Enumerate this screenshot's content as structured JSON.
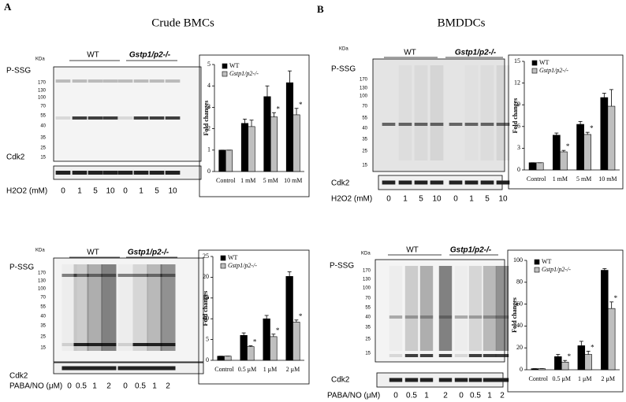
{
  "panels": [
    {
      "label": "A",
      "title": "Crude BMCs"
    },
    {
      "label": "B",
      "title": "BMDDCs"
    }
  ],
  "blots": [
    {
      "kda": "KDa",
      "groups": [
        "WT",
        "Gstp1/p2-/-"
      ],
      "probe": "P-SSG",
      "markers": [
        170,
        130,
        100,
        70,
        55,
        40,
        35,
        25,
        15
      ],
      "loading": "Cdk2",
      "treatment": "H2O2 (mM)",
      "lanes": [
        "0",
        "1",
        "5",
        "10",
        "0",
        "1",
        "5",
        "10"
      ]
    },
    {
      "kda": "KDa",
      "groups": [
        "WT",
        "Gstp1/p2-/-"
      ],
      "probe": "P-SSG",
      "markers": [
        170,
        130,
        100,
        70,
        55,
        40,
        35,
        25,
        15
      ],
      "loading": "Cdk2",
      "treatment": "H2O2 (mM)",
      "lanes": [
        "0",
        "1",
        "5",
        "10",
        "0",
        "1",
        "5",
        "10"
      ]
    },
    {
      "kda": "KDa",
      "groups": [
        "WT",
        "Gstp1/p2-/-"
      ],
      "probe": "P-SSG",
      "markers": [
        170,
        130,
        100,
        70,
        55,
        40,
        35,
        25,
        15
      ],
      "loading": "Cdk2",
      "treatment": "PABA/NO (μM)",
      "lanes": [
        "0",
        "0.5",
        "1",
        "2",
        "0",
        "0.5",
        "1",
        "2"
      ]
    },
    {
      "kda": "KDa",
      "groups": [
        "WT",
        "Gstp1/p2-/-"
      ],
      "probe": "P-SSG",
      "markers": [
        170,
        130,
        100,
        70,
        55,
        40,
        35,
        25,
        15
      ],
      "loading": "Cdk2",
      "treatment": "PABA/NO (μM)",
      "lanes": [
        "0",
        "0.5",
        "1",
        "2",
        "0",
        "0.5",
        "1",
        "2"
      ]
    }
  ],
  "chart_data": [
    {
      "type": "bar",
      "ylabel": "Fold changes",
      "categories": [
        "Control",
        "1 mM",
        "5 mM",
        "10 mM"
      ],
      "ylim": [
        0,
        5
      ],
      "yticks": [
        0,
        1,
        2,
        3,
        4,
        5
      ],
      "legend": "upper left",
      "series": [
        {
          "name": "WT",
          "color": "#000000",
          "values": [
            1,
            2.25,
            3.5,
            4.15
          ],
          "errors": [
            0,
            0.2,
            0.5,
            0.55
          ]
        },
        {
          "name": "Gstp1/p2-/-",
          "color": "#bfbfbf",
          "values": [
            1,
            2.1,
            2.55,
            2.65
          ],
          "errors": [
            0,
            0.3,
            0.2,
            0.3
          ],
          "significance": [
            null,
            null,
            "*",
            "*"
          ]
        }
      ]
    },
    {
      "type": "bar",
      "ylabel": "Fold changes",
      "categories": [
        "Control",
        "1 mM",
        "5 mM",
        "10 mM"
      ],
      "ylim": [
        0,
        15
      ],
      "yticks": [
        0,
        3,
        6,
        9,
        12,
        15
      ],
      "legend": "upper left",
      "series": [
        {
          "name": "WT",
          "color": "#000000",
          "values": [
            1,
            4.8,
            6.3,
            10
          ],
          "errors": [
            0,
            0.3,
            0.4,
            0.6
          ]
        },
        {
          "name": "Gstp1/p2-/-",
          "color": "#bfbfbf",
          "values": [
            1,
            2.5,
            4.9,
            8.8
          ],
          "errors": [
            0,
            0.2,
            0.3,
            2.3
          ],
          "significance": [
            null,
            "*",
            "*",
            null
          ]
        }
      ]
    },
    {
      "type": "bar",
      "ylabel": "Fold changes",
      "categories": [
        "Control",
        "0.5 μM",
        "1 μM",
        "2 μM"
      ],
      "ylim": [
        0,
        25
      ],
      "yticks": [
        0,
        5,
        10,
        15,
        20,
        25
      ],
      "legend": "upper left",
      "series": [
        {
          "name": "WT",
          "color": "#000000",
          "values": [
            1,
            6,
            10,
            20.2
          ],
          "errors": [
            0,
            0.6,
            0.8,
            1.1
          ]
        },
        {
          "name": "Gstp1/p2-/-",
          "color": "#bfbfbf",
          "values": [
            1,
            3.3,
            5.7,
            9.2
          ],
          "errors": [
            0,
            0.2,
            0.6,
            0.5
          ],
          "significance": [
            null,
            "*",
            "*",
            "*"
          ]
        }
      ]
    },
    {
      "type": "bar",
      "ylabel": "Fold changes",
      "categories": [
        "Control",
        "0.5 μM",
        "1 μM",
        "2 μM"
      ],
      "ylim": [
        0,
        100
      ],
      "yticks": [
        0,
        20,
        40,
        60,
        80,
        100
      ],
      "legend": "upper left",
      "series": [
        {
          "name": "WT",
          "color": "#000000",
          "values": [
            1,
            12,
            22,
            91
          ],
          "errors": [
            0,
            2,
            4,
            1.5
          ]
        },
        {
          "name": "Gstp1/p2-/-",
          "color": "#bfbfbf",
          "values": [
            1,
            7,
            14,
            56
          ],
          "errors": [
            0,
            1.5,
            3,
            6
          ],
          "significance": [
            null,
            "*",
            "*",
            "*"
          ]
        }
      ]
    }
  ]
}
